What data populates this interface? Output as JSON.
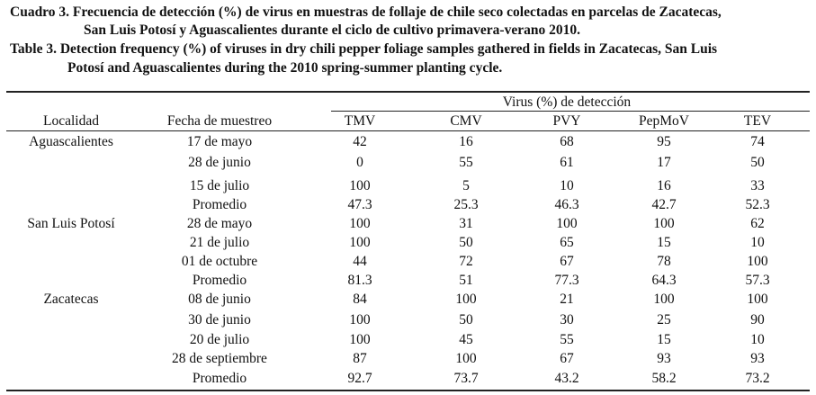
{
  "caption": {
    "es_line1": "Cuadro 3. Frecuencia de detección (%) de virus en muestras de follaje de chile seco colectadas en parcelas de Zacatecas,",
    "es_line2": "San Luis Potosí y Aguascalientes durante el ciclo de cultivo primavera-verano 2010.",
    "en_line1": "Table 3. Detection frequency (%) of viruses in dry chili pepper foliage samples gathered in fields in Zacatecas, San Luis",
    "en_line2": "Potosí and Aguascalientes during the 2010 spring-summer planting cycle."
  },
  "header": {
    "spanner": "Virus (%) de detección",
    "localidad": "Localidad",
    "fecha": "Fecha de muestreo",
    "tmv": "TMV",
    "cmv": "CMV",
    "pvy": "PVY",
    "pepmov": "PepMoV",
    "tev": "TEV"
  },
  "rows": [
    {
      "loc": "Aguascalientes",
      "date": "17 de mayo",
      "tmv": "42",
      "cmv": "16",
      "pvy": "68",
      "pepmov": "95",
      "tev": "74"
    },
    {
      "loc": "",
      "date": "28 de junio",
      "tmv": "0",
      "cmv": "55",
      "pvy": "61",
      "pepmov": "17",
      "tev": "50"
    },
    {
      "loc": "",
      "date": "15 de julio",
      "tmv": "100",
      "cmv": "5",
      "pvy": "10",
      "pepmov": "16",
      "tev": "33"
    },
    {
      "loc": "",
      "date": "Promedio",
      "tmv": "47.3",
      "cmv": "25.3",
      "pvy": "46.3",
      "pepmov": "42.7",
      "tev": "52.3"
    },
    {
      "loc": "San Luis Potosí",
      "date": "28 de mayo",
      "tmv": "100",
      "cmv": "31",
      "pvy": "100",
      "pepmov": "100",
      "tev": "62"
    },
    {
      "loc": "",
      "date": "21 de julio",
      "tmv": "100",
      "cmv": "50",
      "pvy": "65",
      "pepmov": "15",
      "tev": "10"
    },
    {
      "loc": "",
      "date": "01 de octubre",
      "tmv": "44",
      "cmv": "72",
      "pvy": "67",
      "pepmov": "78",
      "tev": "100"
    },
    {
      "loc": "",
      "date": "Promedio",
      "tmv": "81.3",
      "cmv": "51",
      "pvy": "77.3",
      "pepmov": "64.3",
      "tev": "57.3"
    },
    {
      "loc": "Zacatecas",
      "date": "08 de junio",
      "tmv": "84",
      "cmv": "100",
      "pvy": "21",
      "pepmov": "100",
      "tev": "100"
    },
    {
      "loc": "",
      "date": "30 de junio",
      "tmv": "100",
      "cmv": "50",
      "pvy": "30",
      "pepmov": "25",
      "tev": "90"
    },
    {
      "loc": "",
      "date": "20 de julio",
      "tmv": "100",
      "cmv": "45",
      "pvy": "55",
      "pepmov": "15",
      "tev": "10"
    },
    {
      "loc": "",
      "date": "28 de septiembre",
      "tmv": "87",
      "cmv": "100",
      "pvy": "67",
      "pepmov": "93",
      "tev": "93"
    },
    {
      "loc": "",
      "date": "Promedio",
      "tmv": "92.7",
      "cmv": "73.7",
      "pvy": "43.2",
      "pepmov": "58.2",
      "tev": "73.2"
    }
  ]
}
